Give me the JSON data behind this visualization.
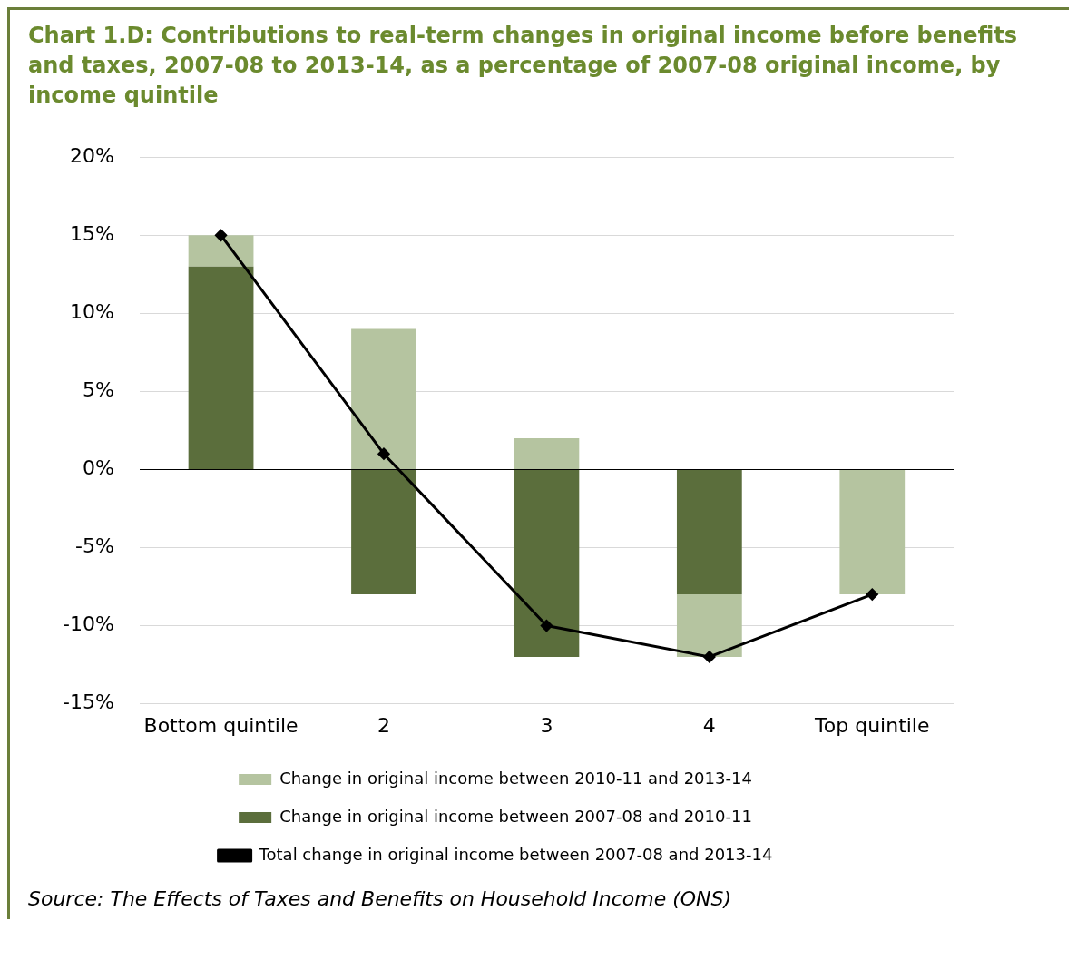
{
  "chart_data": {
    "type": "bar",
    "title": "Chart 1.D: Contributions to real-term changes in original income before benefits and taxes, 2007-08 to 2013-14, as a percentage of 2007-08 original income, by income quintile",
    "categories": [
      "Bottom quintile",
      "2",
      "3",
      "4",
      "Top quintile"
    ],
    "stacked": true,
    "series": [
      {
        "name": "Change in original income between 2007-08 and 2010-11",
        "color": "#5b6e3c",
        "values": [
          13,
          -8,
          -12,
          -8,
          0
        ]
      },
      {
        "name": "Change in original income between 2010-11 and 2013-14",
        "color": "#b5c4a0",
        "values": [
          2,
          9,
          2,
          -4,
          -8
        ]
      },
      {
        "type": "line",
        "name": "Total change in original income between 2007-08 and 2013-14",
        "color": "#000000",
        "values": [
          15,
          1,
          -10,
          -12,
          -8
        ],
        "marker": "diamond"
      }
    ],
    "ylim": [
      -15,
      20
    ],
    "yticks": [
      {
        "value": -15,
        "label": "-15%"
      },
      {
        "value": -10,
        "label": "-10%"
      },
      {
        "value": -5,
        "label": "-5%"
      },
      {
        "value": 0,
        "label": "0%"
      },
      {
        "value": 5,
        "label": "5%"
      },
      {
        "value": 10,
        "label": "10%"
      },
      {
        "value": 15,
        "label": "15%"
      },
      {
        "value": 20,
        "label": "20%"
      }
    ],
    "grid": "y",
    "legend": "bottom",
    "annotations": [
      "Source: The Effects of Taxes and Benefits on Household Income (ONS)"
    ]
  }
}
